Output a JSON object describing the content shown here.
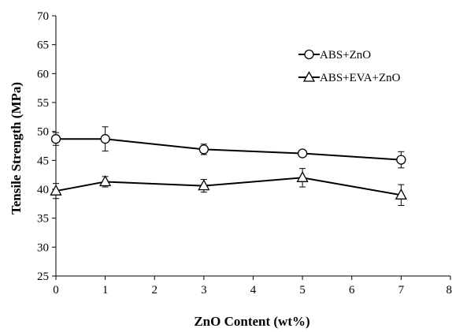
{
  "chart_data": {
    "type": "line",
    "xlabel": "ZnO Content (wt%)",
    "ylabel": "Tensile Strength (MPa)",
    "xlim": [
      0,
      8
    ],
    "ylim": [
      25,
      70
    ],
    "x_ticks": [
      "0",
      "1",
      "2",
      "3",
      "4",
      "5",
      "6",
      "7",
      "8"
    ],
    "y_ticks": [
      "25",
      "30",
      "35",
      "40",
      "45",
      "50",
      "55",
      "60",
      "65",
      "70"
    ],
    "grid": false,
    "legend_position": "top-right",
    "series": [
      {
        "name": "ABS+ZnO",
        "marker": "circle",
        "color": "#000000",
        "x": [
          0,
          1,
          3,
          5,
          7
        ],
        "y": [
          48.7,
          48.7,
          46.9,
          46.2,
          45.1
        ],
        "error": [
          1.1,
          2.1,
          0.9,
          0.5,
          1.4
        ]
      },
      {
        "name": "ABS+EVA+ZnO",
        "marker": "triangle",
        "color": "#000000",
        "x": [
          0,
          1,
          3,
          5,
          7
        ],
        "y": [
          39.7,
          41.3,
          40.6,
          42.0,
          39.0
        ],
        "error": [
          1.3,
          0.9,
          1.1,
          1.6,
          1.8
        ]
      }
    ]
  }
}
